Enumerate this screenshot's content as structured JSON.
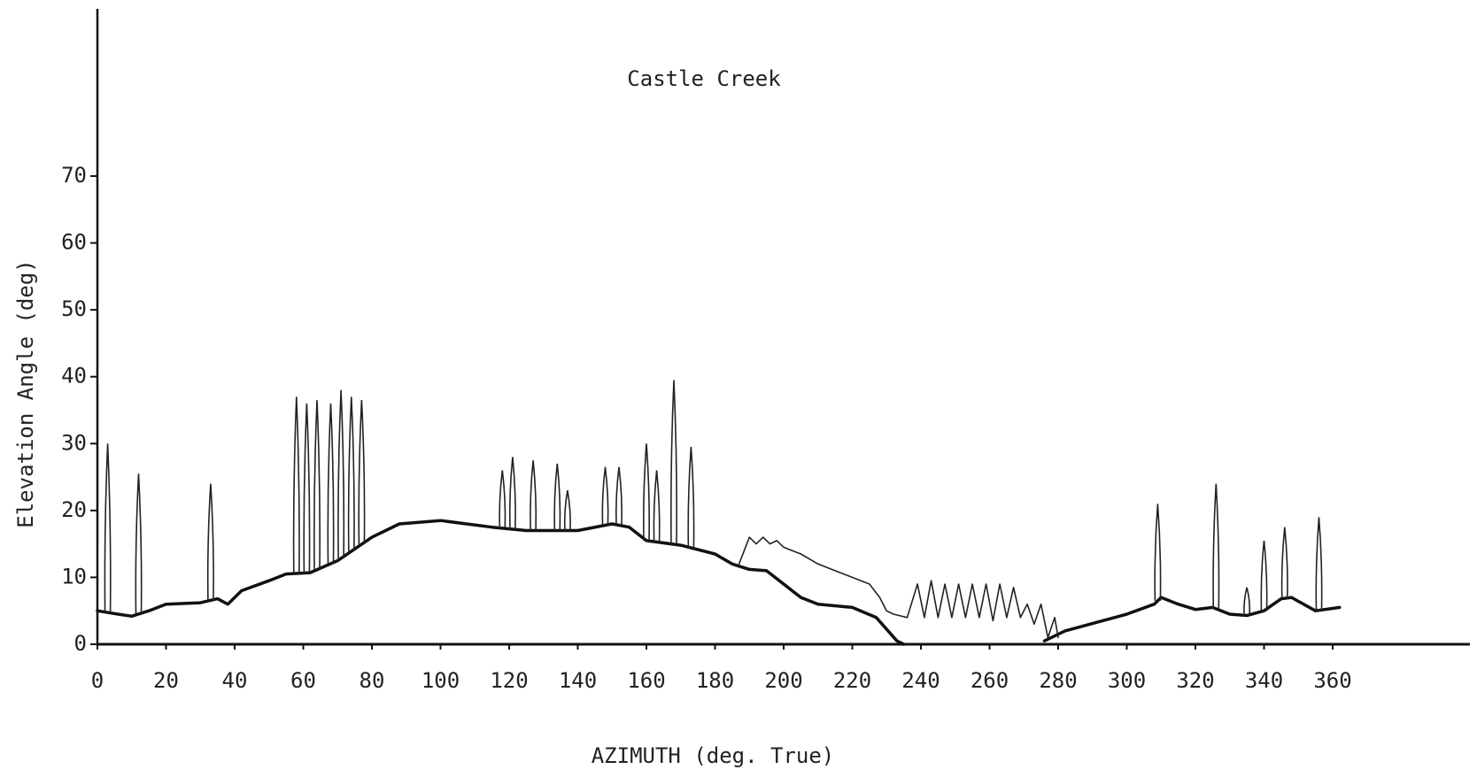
{
  "chart_data": {
    "type": "line",
    "title": "Castle Creek",
    "x_label": "AZIMUTH (deg. True)",
    "y_label": "Elevation Angle (deg)",
    "xlim": [
      0,
      400
    ],
    "ylim": [
      0,
      95
    ],
    "xticks": [
      0,
      20,
      40,
      60,
      80,
      100,
      120,
      140,
      160,
      180,
      200,
      220,
      240,
      260,
      280,
      300,
      320,
      340,
      360
    ],
    "yticks": [
      0,
      10,
      20,
      30,
      40,
      50,
      60,
      70
    ],
    "grid": false,
    "series": [
      {
        "color": "#111111",
        "style": "thick",
        "x": [
          0,
          6,
          10,
          15,
          20,
          30,
          35,
          38,
          42,
          50,
          55,
          62,
          70,
          80,
          88,
          100,
          115,
          125,
          140,
          150,
          155,
          160,
          170,
          180,
          185,
          190,
          195,
          205,
          210,
          220,
          227,
          233,
          235,
          255,
          276,
          282,
          300,
          308,
          310,
          315,
          320,
          325,
          330,
          335,
          340,
          345,
          348,
          355,
          362
        ],
        "values": [
          5,
          4.5,
          4.2,
          5,
          6,
          6.2,
          6.8,
          6,
          8,
          9.5,
          10.5,
          10.7,
          12.5,
          16,
          18,
          18.5,
          17.5,
          17,
          17,
          18,
          17.5,
          15.5,
          14.8,
          13.5,
          12,
          11.2,
          11,
          7,
          6,
          5.5,
          4,
          0.5,
          0,
          null,
          0.5,
          2,
          4.5,
          6,
          7,
          6,
          5.2,
          5.5,
          4.5,
          4.3,
          5,
          6.8,
          7,
          5,
          5.5
        ]
      },
      {
        "color": "#222222",
        "style": "thin",
        "x": [
          187,
          190,
          192,
          194,
          196,
          198,
          200,
          205,
          210,
          215,
          220,
          225,
          228,
          230,
          232,
          236,
          239,
          241,
          243,
          245,
          247,
          249,
          251,
          253,
          255,
          257,
          259,
          261,
          263,
          265,
          267,
          269,
          271,
          273,
          275,
          277,
          279,
          280
        ],
        "values": [
          12,
          16,
          15,
          16,
          15,
          15.5,
          14.5,
          13.5,
          12,
          11,
          10,
          9,
          7,
          5,
          4.5,
          4,
          9,
          4,
          9.5,
          4,
          9,
          4,
          9,
          4,
          9,
          4,
          9,
          3.5,
          9,
          4,
          8.5,
          4,
          6,
          3,
          6,
          1,
          4,
          1
        ]
      },
      {
        "color": "#222222",
        "style": "spike",
        "x": [
          3,
          12,
          33,
          58,
          61,
          64,
          68,
          71,
          74,
          77,
          118,
          121,
          127,
          134,
          137,
          148,
          152,
          160,
          163,
          168,
          173,
          309,
          326,
          335,
          340,
          346,
          356
        ],
        "values": [
          30,
          25.5,
          24,
          37,
          36,
          36.5,
          36,
          38,
          37,
          36.5,
          26,
          28,
          27.5,
          27,
          23,
          26.5,
          26.5,
          30,
          26,
          39.5,
          29.5,
          21,
          24,
          8.5,
          15.5,
          17.5,
          19
        ]
      }
    ]
  }
}
